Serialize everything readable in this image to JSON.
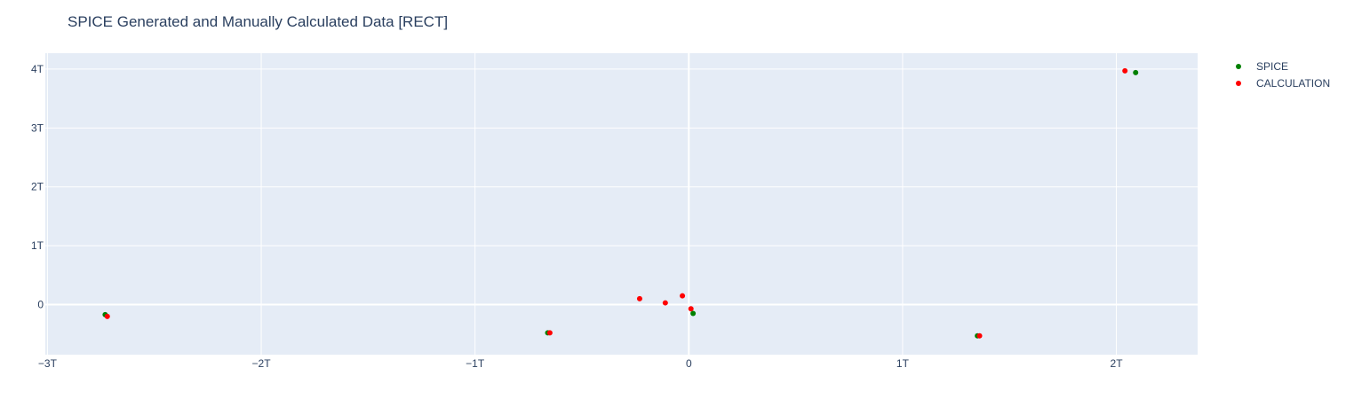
{
  "chart_data": {
    "type": "scatter",
    "title": "SPICE Generated and Manually Calculated Data [RECT]",
    "xlabel": "",
    "ylabel": "",
    "xlim": [
      -3.01,
      2.38
    ],
    "ylim": [
      -0.85,
      4.27
    ],
    "x_ticks": [
      {
        "value": -3,
        "label": "−3T"
      },
      {
        "value": -2,
        "label": "−2T"
      },
      {
        "value": -1,
        "label": "−1T"
      },
      {
        "value": 0,
        "label": "0"
      },
      {
        "value": 1,
        "label": "1T"
      },
      {
        "value": 2,
        "label": "2T"
      }
    ],
    "y_ticks": [
      {
        "value": 0,
        "label": "0"
      },
      {
        "value": 1,
        "label": "1T"
      },
      {
        "value": 2,
        "label": "2T"
      },
      {
        "value": 3,
        "label": "3T"
      },
      {
        "value": 4,
        "label": "4T"
      }
    ],
    "grid": true,
    "legend_position": "top-right",
    "series": [
      {
        "name": "SPICE",
        "color": "#008000",
        "x": [
          -2.73,
          -0.66,
          0.02,
          1.35,
          2.09
        ],
        "y": [
          -0.17,
          -0.48,
          -0.15,
          -0.53,
          3.94
        ]
      },
      {
        "name": "CALCULATION",
        "color": "#ff0000",
        "x": [
          -2.72,
          -0.65,
          -0.23,
          -0.11,
          -0.03,
          0.01,
          1.36,
          2.04
        ],
        "y": [
          -0.2,
          -0.48,
          0.1,
          0.03,
          0.15,
          -0.07,
          -0.53,
          3.97
        ]
      }
    ]
  }
}
